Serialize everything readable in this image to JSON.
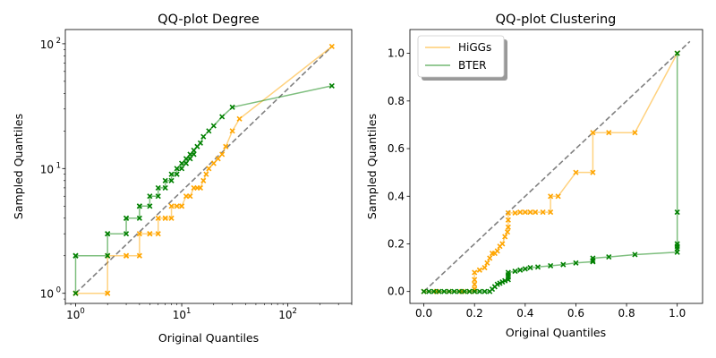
{
  "colors": {
    "higgs": "#ffa500",
    "bter": "#008000",
    "diagonal": "#808080"
  },
  "chart_data": [
    {
      "type": "line",
      "title": "QQ-plot Degree",
      "xlabel": "Original Quantiles",
      "ylabel": "Sampled Quantiles",
      "xscale": "log",
      "yscale": "log",
      "xlim": [
        0.8,
        400
      ],
      "ylim": [
        0.83,
        130
      ],
      "xtick_labels": [
        {
          "v": 1,
          "l": "10",
          "e": "0"
        },
        {
          "v": 10,
          "l": "10",
          "e": "1"
        },
        {
          "v": 100,
          "l": "10",
          "e": "2"
        }
      ],
      "ytick_labels": [
        {
          "v": 1,
          "l": "10",
          "e": "0"
        },
        {
          "v": 10,
          "l": "10",
          "e": "1"
        },
        {
          "v": 100,
          "l": "10",
          "e": "2"
        }
      ],
      "diagonal": [
        [
          1,
          1
        ],
        [
          260,
          95
        ]
      ],
      "series": [
        {
          "key": "higgs",
          "points": [
            [
              1,
              1
            ],
            [
              1,
              1
            ],
            [
              2,
              1
            ],
            [
              2,
              1
            ],
            [
              2,
              2
            ],
            [
              3,
              2
            ],
            [
              3,
              2
            ],
            [
              4,
              2
            ],
            [
              4,
              3
            ],
            [
              5,
              3
            ],
            [
              5,
              3
            ],
            [
              6,
              3
            ],
            [
              6,
              4
            ],
            [
              7,
              4
            ],
            [
              7,
              4
            ],
            [
              8,
              4
            ],
            [
              8,
              5
            ],
            [
              9,
              5
            ],
            [
              10,
              5
            ],
            [
              10,
              5
            ],
            [
              11,
              6
            ],
            [
              12,
              6
            ],
            [
              13,
              7
            ],
            [
              14,
              7
            ],
            [
              15,
              7
            ],
            [
              16,
              8
            ],
            [
              17,
              9
            ],
            [
              18,
              10
            ],
            [
              20,
              11
            ],
            [
              22,
              12
            ],
            [
              24,
              13
            ],
            [
              26,
              15
            ],
            [
              30,
              20
            ],
            [
              35,
              25
            ],
            [
              260,
              95
            ]
          ]
        },
        {
          "key": "bter",
          "points": [
            [
              1,
              1
            ],
            [
              1,
              2
            ],
            [
              1,
              2
            ],
            [
              2,
              2
            ],
            [
              2,
              3
            ],
            [
              2,
              3
            ],
            [
              3,
              3
            ],
            [
              3,
              4
            ],
            [
              3,
              4
            ],
            [
              4,
              4
            ],
            [
              4,
              5
            ],
            [
              4,
              5
            ],
            [
              5,
              5
            ],
            [
              5,
              6
            ],
            [
              6,
              6
            ],
            [
              6,
              7
            ],
            [
              7,
              7
            ],
            [
              7,
              8
            ],
            [
              8,
              8
            ],
            [
              8,
              9
            ],
            [
              9,
              9
            ],
            [
              9,
              10
            ],
            [
              10,
              10
            ],
            [
              10,
              11
            ],
            [
              11,
              11
            ],
            [
              11,
              12
            ],
            [
              12,
              12
            ],
            [
              12,
              13
            ],
            [
              13,
              13
            ],
            [
              13,
              14
            ],
            [
              14,
              15
            ],
            [
              15,
              16
            ],
            [
              16,
              18
            ],
            [
              18,
              20
            ],
            [
              20,
              22
            ],
            [
              24,
              26
            ],
            [
              30,
              31
            ],
            [
              260,
              46
            ]
          ]
        }
      ]
    },
    {
      "type": "line",
      "title": "QQ-plot Clustering",
      "xlabel": "Original Quantiles",
      "ylabel": "Sampled Quantiles",
      "xlim": [
        -0.055,
        1.1
      ],
      "ylim": [
        -0.05,
        1.1
      ],
      "xticks": [
        0.0,
        0.2,
        0.4,
        0.6,
        0.8,
        1.0
      ],
      "yticks": [
        0.0,
        0.2,
        0.4,
        0.6,
        0.8,
        1.0
      ],
      "xtick_labels": [
        "0.0",
        "0.2",
        "0.4",
        "0.6",
        "0.8",
        "1.0"
      ],
      "ytick_labels": [
        "0.0",
        "0.2",
        "0.4",
        "0.6",
        "0.8",
        "1.0"
      ],
      "diagonal": [
        [
          0,
          0
        ],
        [
          1.05,
          1.05
        ]
      ],
      "legend": {
        "placement": "upper-left",
        "entries": [
          {
            "key": "higgs",
            "label": "HiGGs"
          },
          {
            "key": "bter",
            "label": "BTER"
          }
        ]
      },
      "series": [
        {
          "key": "higgs",
          "points": [
            [
              0,
              0
            ],
            [
              0.05,
              0
            ],
            [
              0.1,
              0
            ],
            [
              0.15,
              0
            ],
            [
              0.18,
              0
            ],
            [
              0.2,
              0
            ],
            [
              0.2,
              0.01
            ],
            [
              0.2,
              0.03
            ],
            [
              0.2,
              0.05
            ],
            [
              0.2,
              0.08
            ],
            [
              0.22,
              0.09
            ],
            [
              0.24,
              0.1
            ],
            [
              0.25,
              0.12
            ],
            [
              0.26,
              0.14
            ],
            [
              0.27,
              0.16
            ],
            [
              0.28,
              0.16
            ],
            [
              0.29,
              0.17
            ],
            [
              0.3,
              0.19
            ],
            [
              0.31,
              0.2
            ],
            [
              0.32,
              0.23
            ],
            [
              0.33,
              0.25
            ],
            [
              0.333,
              0.27
            ],
            [
              0.333,
              0.3
            ],
            [
              0.333,
              0.33
            ],
            [
              0.36,
              0.33
            ],
            [
              0.38,
              0.333
            ],
            [
              0.4,
              0.333
            ],
            [
              0.42,
              0.333
            ],
            [
              0.44,
              0.333
            ],
            [
              0.47,
              0.333
            ],
            [
              0.5,
              0.333
            ],
            [
              0.5,
              0.4
            ],
            [
              0.53,
              0.4
            ],
            [
              0.6,
              0.5
            ],
            [
              0.667,
              0.5
            ],
            [
              0.667,
              0.667
            ],
            [
              0.73,
              0.667
            ],
            [
              0.833,
              0.667
            ],
            [
              1,
              1
            ]
          ]
        },
        {
          "key": "bter",
          "points": [
            [
              0,
              0
            ],
            [
              0.02,
              0
            ],
            [
              0.04,
              0
            ],
            [
              0.06,
              0
            ],
            [
              0.08,
              0
            ],
            [
              0.1,
              0
            ],
            [
              0.12,
              0
            ],
            [
              0.14,
              0
            ],
            [
              0.16,
              0
            ],
            [
              0.18,
              0
            ],
            [
              0.2,
              0
            ],
            [
              0.22,
              0
            ],
            [
              0.24,
              0
            ],
            [
              0.26,
              0
            ],
            [
              0.27,
              0.01
            ],
            [
              0.28,
              0.02
            ],
            [
              0.29,
              0.03
            ],
            [
              0.3,
              0.035
            ],
            [
              0.31,
              0.04
            ],
            [
              0.32,
              0.045
            ],
            [
              0.333,
              0.05
            ],
            [
              0.333,
              0.06
            ],
            [
              0.333,
              0.07
            ],
            [
              0.333,
              0.08
            ],
            [
              0.36,
              0.085
            ],
            [
              0.38,
              0.09
            ],
            [
              0.4,
              0.095
            ],
            [
              0.42,
              0.1
            ],
            [
              0.45,
              0.103
            ],
            [
              0.5,
              0.108
            ],
            [
              0.55,
              0.113
            ],
            [
              0.6,
              0.12
            ],
            [
              0.667,
              0.125
            ],
            [
              0.667,
              0.13
            ],
            [
              0.667,
              0.14
            ],
            [
              0.73,
              0.145
            ],
            [
              0.833,
              0.155
            ],
            [
              1,
              0.165
            ],
            [
              1,
              0.18
            ],
            [
              1,
              0.19
            ],
            [
              1,
              0.2
            ],
            [
              1,
              0.333
            ],
            [
              1,
              1
            ]
          ]
        }
      ]
    }
  ]
}
